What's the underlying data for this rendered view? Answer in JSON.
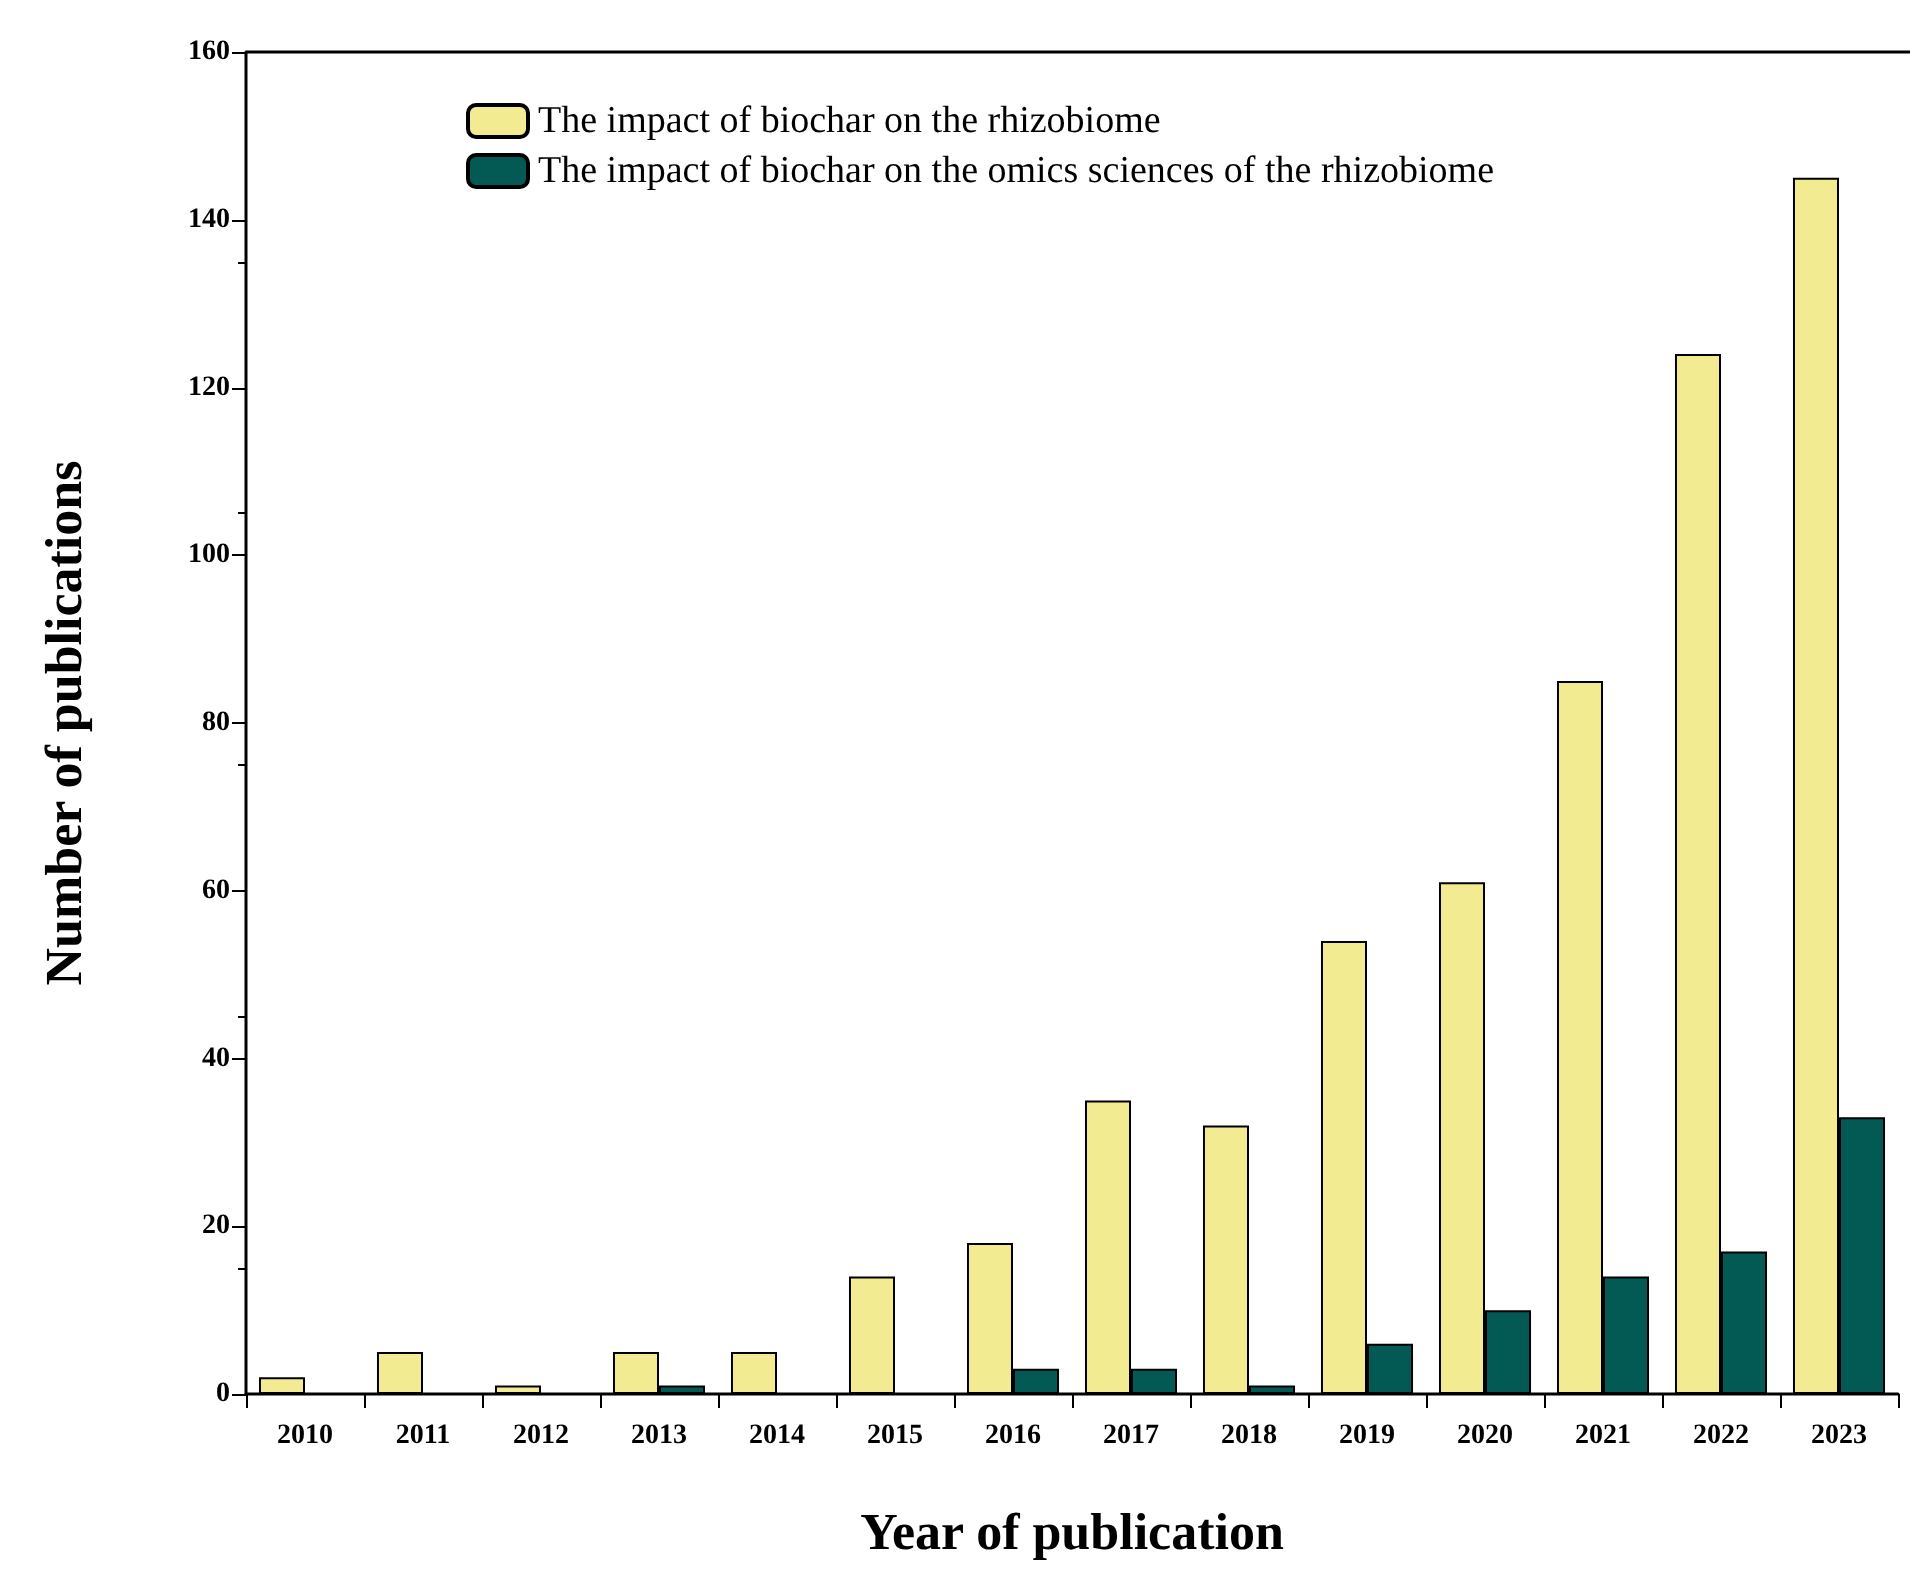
{
  "chart_data": {
    "type": "bar",
    "xlabel": "Year of publication",
    "ylabel": "Number of publications",
    "categories": [
      "2010",
      "2011",
      "2012",
      "2013",
      "2014",
      "2015",
      "2016",
      "2017",
      "2018",
      "2019",
      "2020",
      "2021",
      "2022",
      "2023"
    ],
    "series": [
      {
        "name": "The impact of biochar on the rhizobiome",
        "color": "#f3eb91",
        "values": [
          2,
          5,
          1,
          5,
          5,
          14,
          18,
          35,
          32,
          54,
          61,
          85,
          124,
          145
        ]
      },
      {
        "name": "The impact of biochar on the omics sciences of the rhizobiome",
        "color": "#035a55",
        "values": [
          0,
          0,
          0,
          1,
          0,
          0,
          3,
          3,
          1,
          6,
          10,
          14,
          17,
          33
        ]
      }
    ],
    "ylim": [
      0,
      160
    ],
    "yticks": [
      0,
      20,
      40,
      60,
      80,
      100,
      120,
      140,
      160
    ],
    "grid": false,
    "legend": "top left"
  }
}
